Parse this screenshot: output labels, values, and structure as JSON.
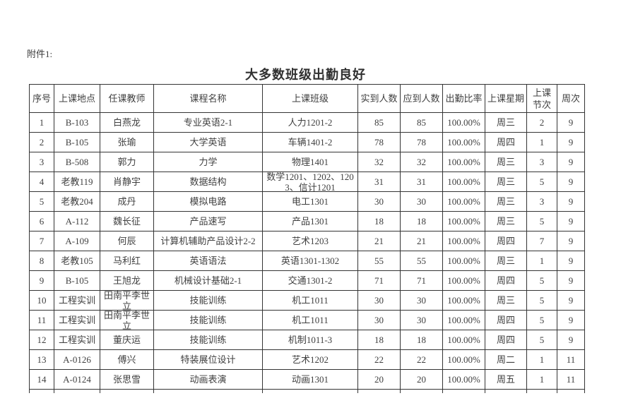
{
  "page": {
    "attachment_label": "附件1:",
    "title": "大多数班级出勤良好"
  },
  "table": {
    "columns": [
      "序号",
      "上课地点",
      "任课教师",
      "课程名称",
      "上课班级",
      "实到人数",
      "应到人数",
      "出勤比率",
      "上课星期",
      "上课节次",
      "周次"
    ],
    "rows": [
      [
        "1",
        "B-103",
        "白燕龙",
        "专业英语2-1",
        "人力1201-2",
        "85",
        "85",
        "100.00%",
        "周三",
        "2",
        "9"
      ],
      [
        "2",
        "B-105",
        "张瑜",
        "大学英语",
        "车辆1401-2",
        "78",
        "78",
        "100.00%",
        "周四",
        "1",
        "9"
      ],
      [
        "3",
        "B-508",
        "郭力",
        "力学",
        "物理1401",
        "32",
        "32",
        "100.00%",
        "周三",
        "3",
        "9"
      ],
      [
        "4",
        "老教119",
        "肖静宇",
        "数据结构",
        "数学1201、1202、1203、信计1201",
        "31",
        "31",
        "100.00%",
        "周三",
        "5",
        "9"
      ],
      [
        "5",
        "老教204",
        "成丹",
        "模拟电路",
        "电工1301",
        "30",
        "30",
        "100.00%",
        "周三",
        "3",
        "9"
      ],
      [
        "6",
        "A-112",
        "魏长征",
        "产品速写",
        "产品1301",
        "18",
        "18",
        "100.00%",
        "周三",
        "5",
        "9"
      ],
      [
        "7",
        "A-109",
        "何辰",
        "计算机辅助产品设计2-2",
        "艺术1203",
        "21",
        "21",
        "100.00%",
        "周四",
        "7",
        "9"
      ],
      [
        "8",
        "老教105",
        "马利红",
        "英语语法",
        "英语1301-1302",
        "55",
        "55",
        "100.00%",
        "周三",
        "1",
        "9"
      ],
      [
        "9",
        "B-105",
        "王旭龙",
        "机械设计基础2-1",
        "交通1301-2",
        "71",
        "71",
        "100.00%",
        "周四",
        "5",
        "9"
      ],
      [
        "10",
        "工程实训",
        "田南平李世立",
        "技能训练",
        "机工1011",
        "30",
        "30",
        "100.00%",
        "周三",
        "5",
        "9"
      ],
      [
        "11",
        "工程实训",
        "田南平李世立",
        "技能训练",
        "机工1011",
        "30",
        "30",
        "100.00%",
        "周四",
        "5",
        "9"
      ],
      [
        "12",
        "工程实训",
        "董庆运",
        "技能训练",
        "机制1011-3",
        "18",
        "18",
        "100.00%",
        "周四",
        "5",
        "9"
      ],
      [
        "13",
        "A-0126",
        "傅兴",
        "特装展位设计",
        "艺术1202",
        "22",
        "22",
        "100.00%",
        "周二",
        "1",
        "11"
      ],
      [
        "14",
        "A-0124",
        "张思雪",
        "动画表演",
        "动画1301",
        "20",
        "20",
        "100.00%",
        "周五",
        "1",
        "11"
      ]
    ]
  },
  "colors": {
    "background": "#ffffff",
    "text": "#3f3f3f",
    "border": "#343434",
    "title": "#303030"
  }
}
